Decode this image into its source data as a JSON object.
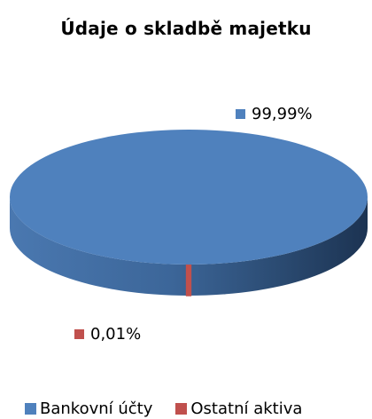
{
  "chart_data": {
    "type": "pie",
    "title": "Údaje o skladbě majetku",
    "categories": [
      "Bankovní účty",
      "Ostatní aktiva"
    ],
    "values": [
      99.99,
      0.01
    ],
    "data_labels": [
      "99,99%",
      "0,01%"
    ],
    "colors": [
      "#4f81bd",
      "#c0504d"
    ],
    "legend_position": "bottom",
    "style": "3d"
  }
}
